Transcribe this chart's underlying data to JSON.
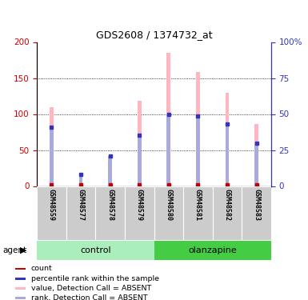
{
  "title": "GDS2608 / 1374732_at",
  "samples": [
    "GSM48559",
    "GSM48577",
    "GSM48578",
    "GSM48579",
    "GSM48580",
    "GSM48581",
    "GSM48582",
    "GSM48583"
  ],
  "pink_bars": [
    110,
    14,
    42,
    118,
    185,
    158,
    129,
    86
  ],
  "blue_bars": [
    82,
    16,
    42,
    71,
    100,
    97,
    86,
    59
  ],
  "ylim_left": [
    0,
    200
  ],
  "ylim_right": [
    0,
    100
  ],
  "yticks_left": [
    0,
    50,
    100,
    150,
    200
  ],
  "yticks_right": [
    0,
    25,
    50,
    75,
    100
  ],
  "ytick_labels_left": [
    "0",
    "50",
    "100",
    "150",
    "200"
  ],
  "ytick_labels_right": [
    "0",
    "25",
    "50",
    "75",
    "100%"
  ],
  "pink_bar_color": "#FFB6C1",
  "blue_bar_color": "#AAAADD",
  "red_dot_color": "#CC0000",
  "blue_dot_color": "#3333BB",
  "legend_items": [
    {
      "color": "#CC0000",
      "label": "count"
    },
    {
      "color": "#3333BB",
      "label": "percentile rank within the sample"
    },
    {
      "color": "#FFB6C1",
      "label": "value, Detection Call = ABSENT"
    },
    {
      "color": "#AAAADD",
      "label": "rank, Detection Call = ABSENT"
    }
  ],
  "left_tick_color": "#CC0000",
  "right_tick_color": "#3333BB",
  "bar_width": 0.13,
  "sample_area_color": "#CCCCCC",
  "control_light_color": "#AAEEBB",
  "olanzapine_dark_color": "#44CC44",
  "grid_lines": [
    50,
    100,
    150
  ],
  "n_samples": 8,
  "n_control": 4,
  "n_olanzapine": 4
}
